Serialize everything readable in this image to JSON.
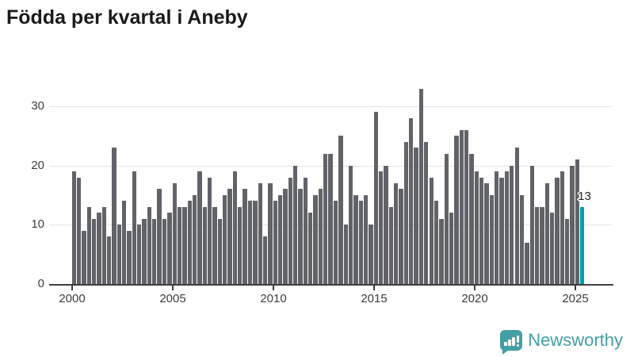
{
  "title": "Födda per kvartal i Aneby",
  "colors": {
    "bar": "#616369",
    "highlight": "#00a0a8",
    "grid": "#e3e3e3",
    "axis": "#3d3d3d",
    "title_text": "#1a1a1a",
    "logo": "#429fa3"
  },
  "footer": {
    "logo_text": "Newsworthy"
  },
  "chart_data": {
    "type": "bar",
    "title": "Födda per kvartal i Aneby",
    "xlabel": "",
    "ylabel": "",
    "start_period": "2000-Q1",
    "end_period": "2025-Q2",
    "x_tick_labels": [
      "2000",
      "2005",
      "2010",
      "2015",
      "2020",
      "2025"
    ],
    "y_ticks": [
      0,
      10,
      20,
      30
    ],
    "ylim": [
      0,
      34.5
    ],
    "grid": "horizontal",
    "legend": "none",
    "series": [
      {
        "name": "Födda per kvartal",
        "values": [
          19,
          18,
          9,
          13,
          11,
          12,
          13,
          8,
          23,
          10,
          14,
          9,
          19,
          10,
          11,
          13,
          11,
          16,
          11,
          12,
          17,
          13,
          13,
          14,
          15,
          19,
          13,
          18,
          13,
          11,
          15,
          16,
          19,
          13,
          16,
          14,
          14,
          17,
          8,
          17,
          14,
          15,
          16,
          18,
          20,
          16,
          18,
          12,
          15,
          16,
          22,
          22,
          14,
          25,
          10,
          20,
          15,
          14,
          15,
          10,
          29,
          19,
          20,
          13,
          17,
          16,
          24,
          28,
          23,
          33,
          24,
          18,
          14,
          11,
          22,
          12,
          25,
          26,
          26,
          22,
          19,
          18,
          17,
          15,
          19,
          18,
          19,
          20,
          23,
          15,
          7,
          20,
          13,
          13,
          17,
          12,
          18,
          19,
          11,
          20,
          21,
          13
        ]
      }
    ],
    "highlight": {
      "index": 101,
      "period": "2025-Q2",
      "value": 13,
      "label": "13",
      "color": "#00a0a8"
    }
  }
}
